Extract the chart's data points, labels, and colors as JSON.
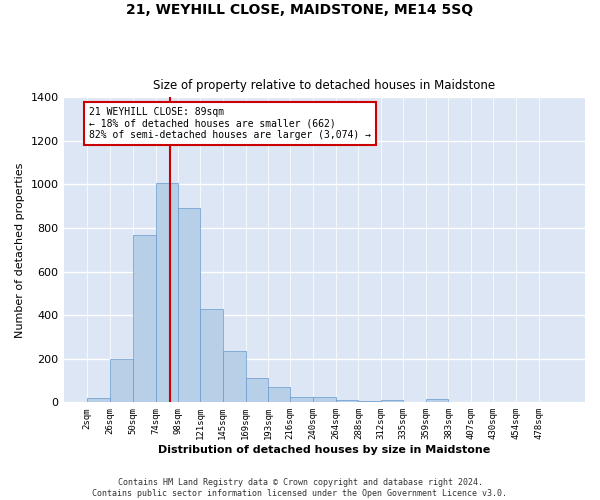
{
  "title": "21, WEYHILL CLOSE, MAIDSTONE, ME14 5SQ",
  "subtitle": "Size of property relative to detached houses in Maidstone",
  "xlabel": "Distribution of detached houses by size in Maidstone",
  "ylabel": "Number of detached properties",
  "bar_color": "#b8cfe8",
  "bar_edge_color": "#6699cc",
  "background_color": "#dce6f5",
  "grid_color": "#ffffff",
  "annotation_text": "21 WEYHILL CLOSE: 89sqm\n← 18% of detached houses are smaller (662)\n82% of semi-detached houses are larger (3,074) →",
  "annotation_box_color": "#cc0000",
  "vline_x": 89,
  "vline_color": "#cc0000",
  "categories": [
    "2sqm",
    "26sqm",
    "50sqm",
    "74sqm",
    "98sqm",
    "121sqm",
    "145sqm",
    "169sqm",
    "193sqm",
    "216sqm",
    "240sqm",
    "264sqm",
    "288sqm",
    "312sqm",
    "335sqm",
    "359sqm",
    "383sqm",
    "407sqm",
    "430sqm",
    "454sqm",
    "478sqm"
  ],
  "bin_edges": [
    2,
    26,
    50,
    74,
    98,
    121,
    145,
    169,
    193,
    216,
    240,
    264,
    288,
    312,
    335,
    359,
    383,
    407,
    430,
    454,
    478,
    502
  ],
  "values": [
    20,
    200,
    770,
    1005,
    890,
    430,
    237,
    110,
    70,
    25,
    23,
    10,
    5,
    10,
    0,
    15,
    0,
    0,
    0,
    0,
    0
  ],
  "ylim": [
    0,
    1400
  ],
  "yticks": [
    0,
    200,
    400,
    600,
    800,
    1000,
    1200,
    1400
  ],
  "footnote1": "Contains HM Land Registry data © Crown copyright and database right 2024.",
  "footnote2": "Contains public sector information licensed under the Open Government Licence v3.0."
}
